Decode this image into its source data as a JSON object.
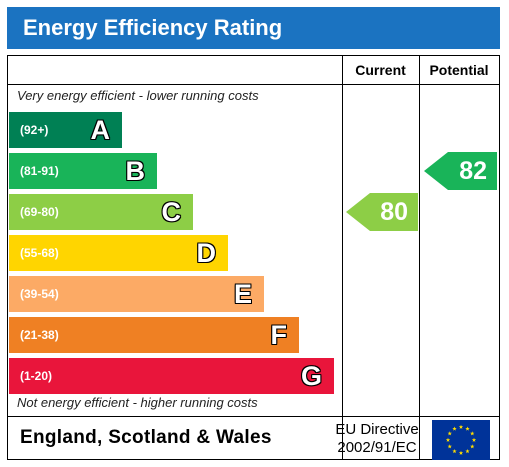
{
  "title": "Energy Efficiency Rating",
  "columns": {
    "current": "Current",
    "potential": "Potential"
  },
  "notes": {
    "top": "Very energy efficient - lower running costs",
    "bottom": "Not energy efficient - higher running costs"
  },
  "chart_data": {
    "type": "bar",
    "title": "Energy Efficiency Rating",
    "categories": [
      "A",
      "B",
      "C",
      "D",
      "E",
      "F",
      "G"
    ],
    "ranges": [
      "(92+)",
      "(81-91)",
      "(69-80)",
      "(55-68)",
      "(39-54)",
      "(21-38)",
      "(1-20)"
    ],
    "colors": [
      "#008054",
      "#19b459",
      "#8dce46",
      "#ffd500",
      "#fcaa65",
      "#ef8023",
      "#e9153b"
    ],
    "current": {
      "value": 80,
      "band": "C",
      "color": "#8dce46"
    },
    "potential": {
      "value": 82,
      "band": "B",
      "color": "#19b459"
    }
  },
  "footer": {
    "region": "England, Scotland & Wales",
    "directive_line1": "EU Directive",
    "directive_line2": "2002/91/EC",
    "flag_color": "#003399",
    "star_color": "#ffdd00"
  }
}
